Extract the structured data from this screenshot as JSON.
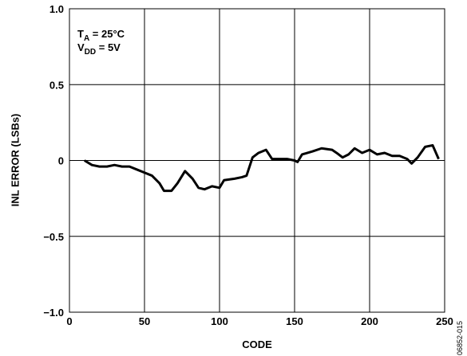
{
  "chart_data": {
    "type": "line",
    "x_label": "CODE",
    "y_label": "INL ERROR (LSBs)",
    "annotations": [
      {
        "main": "T",
        "sub": "A",
        "rest": " = 25°C"
      },
      {
        "main": "V",
        "sub": "DD",
        "rest": " = 5V"
      }
    ],
    "figure_id": "06852-015",
    "xlim": [
      0,
      250
    ],
    "xticks": [
      0,
      50,
      100,
      150,
      200,
      250
    ],
    "ylim": [
      -1,
      1
    ],
    "yticks": [
      {
        "value": -1,
        "label": "−1.0"
      },
      {
        "value": -0.5,
        "label": "−0.5"
      },
      0,
      0.5,
      {
        "value": 1,
        "label": "1.0"
      }
    ],
    "grid": true,
    "series": [
      {
        "name": "INL",
        "color": "#000000",
        "x": [
          10,
          15,
          20,
          25,
          30,
          35,
          40,
          45,
          50,
          55,
          60,
          63,
          68,
          72,
          77,
          82,
          86,
          90,
          95,
          100,
          103,
          110,
          115,
          118,
          122,
          126,
          131,
          135,
          140,
          145,
          150,
          152,
          155,
          162,
          168,
          175,
          178,
          182,
          186,
          190,
          195,
          200,
          205,
          210,
          215,
          220,
          225,
          228,
          232,
          237,
          242,
          246
        ],
        "values": [
          0,
          -0.03,
          -0.04,
          -0.04,
          -0.03,
          -0.04,
          -0.04,
          -0.06,
          -0.08,
          -0.1,
          -0.15,
          -0.2,
          -0.2,
          -0.15,
          -0.07,
          -0.12,
          -0.18,
          -0.19,
          -0.17,
          -0.18,
          -0.13,
          -0.12,
          -0.11,
          -0.1,
          0.02,
          0.05,
          0.07,
          0.01,
          0.01,
          0.01,
          0,
          -0.01,
          0.04,
          0.06,
          0.08,
          0.07,
          0.05,
          0.02,
          0.04,
          0.08,
          0.05,
          0.07,
          0.04,
          0.05,
          0.03,
          0.03,
          0.01,
          -0.02,
          0.02,
          0.09,
          0.1,
          0.01
        ]
      }
    ]
  }
}
